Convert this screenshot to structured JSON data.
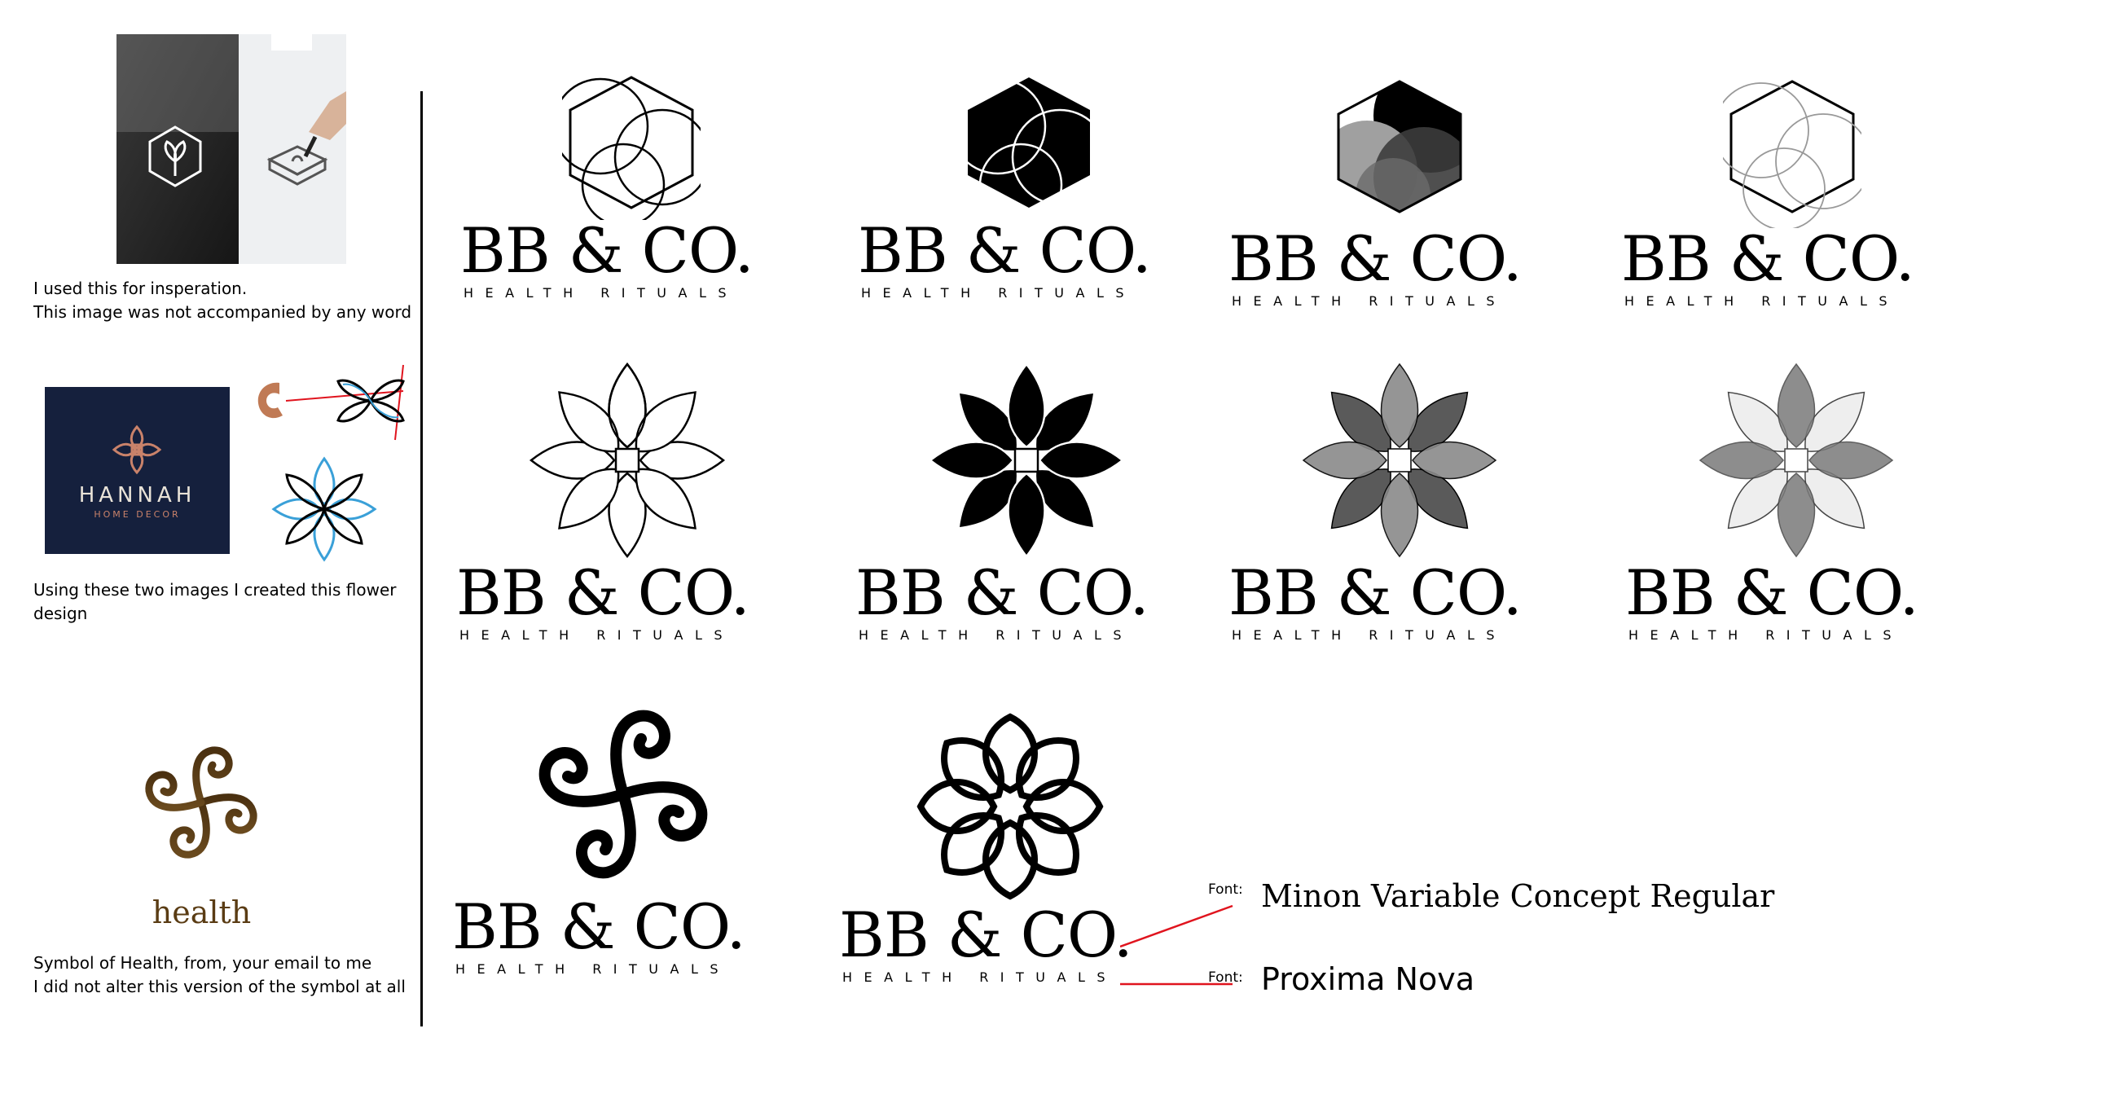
{
  "left": {
    "inspiration_note": "I used this for insperation.\nThis image was not accompanied by any word",
    "hannah": {
      "title": "HANNAH",
      "subtitle": "HOME DECOR"
    },
    "flower_note": "Using these two images I created this flower\ndesign",
    "health_label": "health",
    "health_note": "Symbol of Health, from, your email to me\nI did not alter this version of the symbol at all"
  },
  "brand": {
    "name": "BB & CO.",
    "tagline": "HEALTH RITUALS"
  },
  "fonts": {
    "label": "Font:",
    "primary": "Minon Variable Concept Regular",
    "secondary": "Proxima Nova"
  },
  "colors": {
    "ink": "#000000",
    "annotation_red": "#e0141e",
    "hannah_bg": "#15203d",
    "health_brown": "#5a3c14",
    "sketch_blue": "#3aa0d8",
    "copper": "#c07a55"
  }
}
